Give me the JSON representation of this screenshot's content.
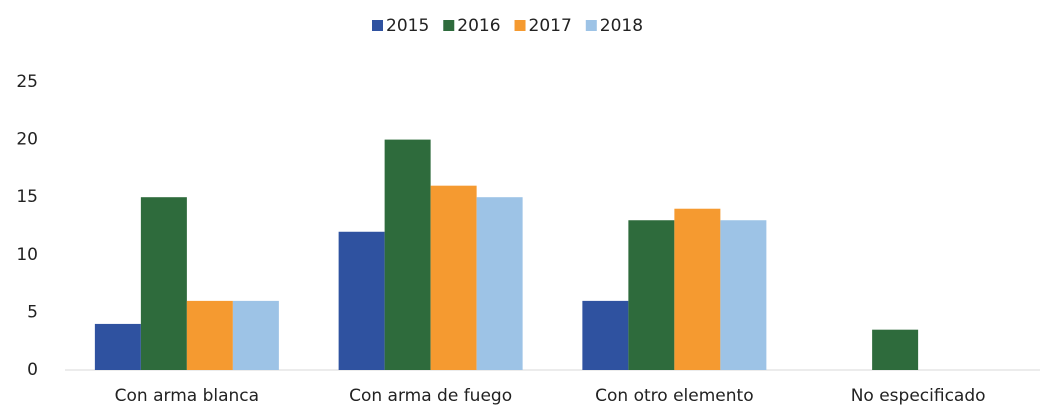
{
  "chart_data": {
    "type": "bar",
    "categories": [
      "Con arma blanca",
      "Con arma de fuego",
      "Con otro elemento",
      "No especificado"
    ],
    "series": [
      {
        "name": "2015",
        "color": "#2f52a0",
        "values": [
          4,
          12,
          6,
          0
        ]
      },
      {
        "name": "2016",
        "color": "#2e6b3c",
        "values": [
          15,
          20,
          13,
          3.5
        ]
      },
      {
        "name": "2017",
        "color": "#f59a30",
        "values": [
          6,
          16,
          14,
          0
        ]
      },
      {
        "name": "2018",
        "color": "#9dc3e6",
        "values": [
          6,
          15,
          13,
          0
        ]
      }
    ],
    "ylim": [
      0,
      25
    ],
    "yticks": [
      0,
      5,
      10,
      15,
      20,
      25
    ],
    "grid": false,
    "legend": "top"
  }
}
